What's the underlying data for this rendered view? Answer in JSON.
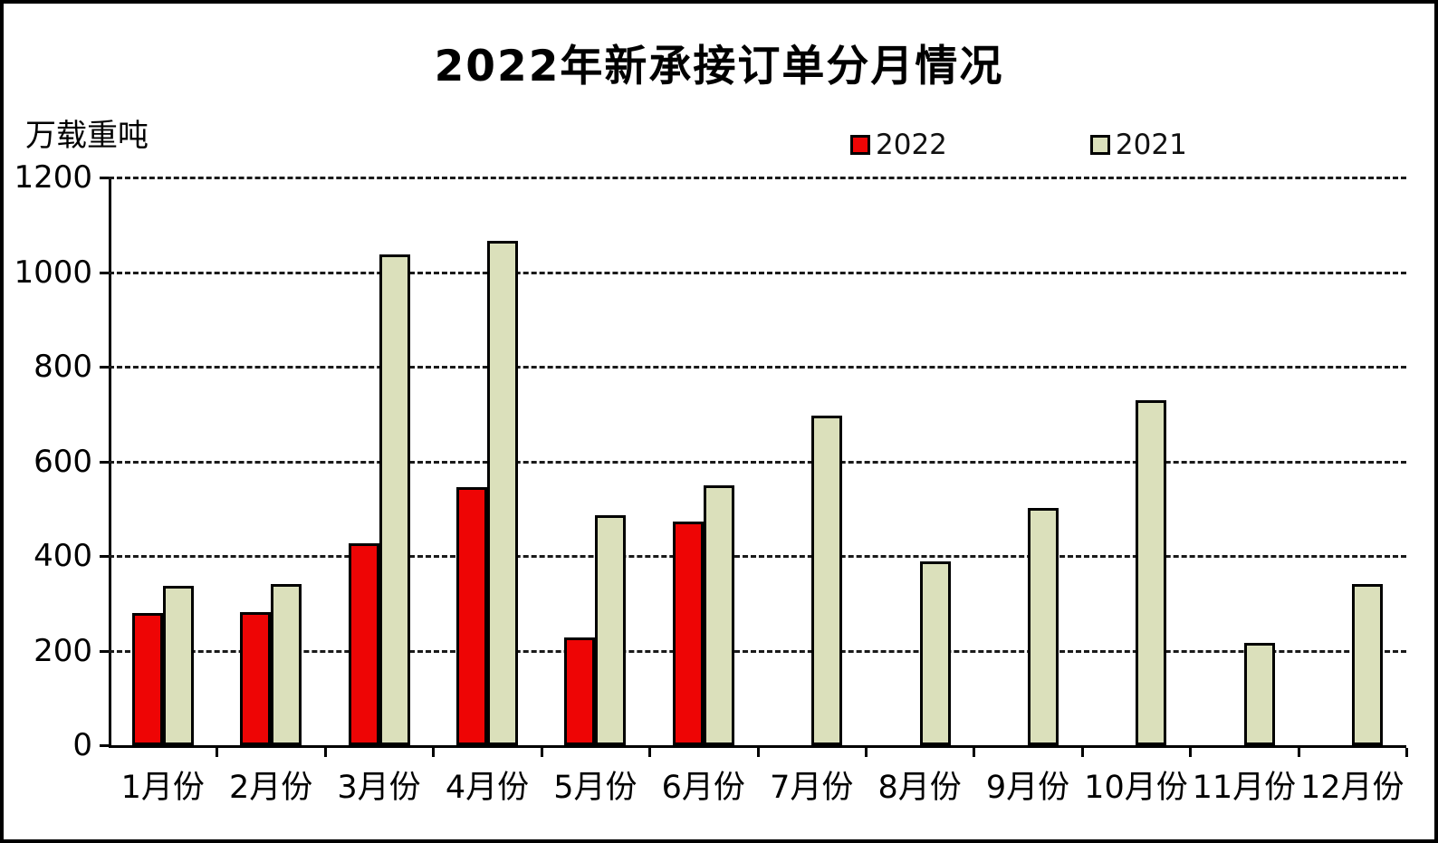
{
  "window": {
    "background": "#ffffff",
    "frame_border_color": "#000000"
  },
  "chart": {
    "title": "2022年新承接订单分月情况",
    "unit_label": "万载重吨",
    "legend": [
      {
        "label": "2022",
        "color": "#ee0505"
      },
      {
        "label": "2021",
        "color": "#dbe0bb"
      }
    ]
  },
  "chart_data": {
    "type": "bar",
    "title": "2022年新承接订单分月情况",
    "xlabel": "",
    "ylabel": "万载重吨",
    "categories": [
      "1月份",
      "2月份",
      "3月份",
      "4月份",
      "5月份",
      "6月份",
      "7月份",
      "8月份",
      "9月份",
      "10月份",
      "11月份",
      "12月份"
    ],
    "series": [
      {
        "name": "2022",
        "color": "#ee0505",
        "values": [
          280,
          281,
          427,
          545,
          228,
          473,
          null,
          null,
          null,
          null,
          null,
          null
        ]
      },
      {
        "name": "2021",
        "color": "#dbe0bb",
        "values": [
          336,
          340,
          1037,
          1067,
          486,
          549,
          697,
          389,
          502,
          729,
          216,
          340
        ]
      }
    ],
    "ylim": [
      0,
      1200
    ],
    "yticks": [
      0,
      200,
      400,
      600,
      800,
      1000,
      1200
    ],
    "grid": "horizontal-dashed",
    "gridline_color": "#1a1a1a",
    "bar_border_color": "#000000",
    "legend_position": "top-right"
  }
}
